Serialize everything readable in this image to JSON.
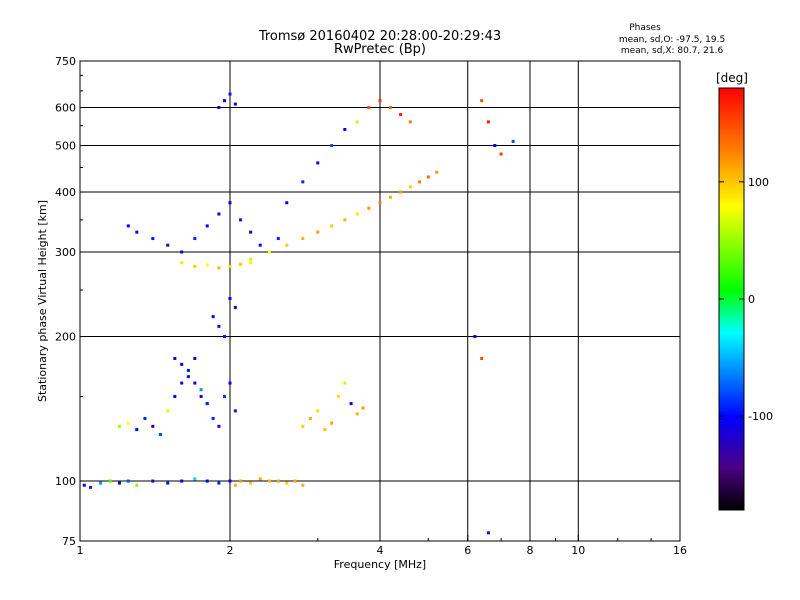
{
  "header": {
    "title_line1": "Tromsø 20160402 20:28:00-20:29:43",
    "title_line2": "RwPretec (Bp)",
    "phase_heading": "Phases",
    "phase_o": "mean, sd,O: -97.5, 19.5",
    "phase_x": "mean, sd,X:  80.7, 21.6"
  },
  "chart_data": {
    "type": "scatter",
    "title": "Tromsø 20160402 20:28:00-20:29:43",
    "subtitle": "RwPretec (Bp)",
    "xlabel": "Frequency [MHz]",
    "ylabel": "Stationary phase Virtual Height [km]",
    "x_scale": "log",
    "y_scale": "log",
    "xlim": [
      1,
      16
    ],
    "ylim": [
      75,
      750
    ],
    "x_ticks": [
      1,
      2,
      4,
      6,
      8,
      10,
      16
    ],
    "y_ticks": [
      75,
      100,
      200,
      300,
      400,
      500,
      600,
      750
    ],
    "grid_x": [
      2,
      4,
      6,
      8,
      10
    ],
    "grid_y": [
      100,
      200,
      300,
      400,
      500,
      600
    ],
    "grid": true,
    "colorbar": {
      "label": "[deg]",
      "range": [
        -180,
        180
      ],
      "ticks": [
        100,
        0,
        -100
      ],
      "colors": [
        "#000000",
        "#4b0082",
        "#0000ff",
        "#00ffff",
        "#00ff00",
        "#ffff00",
        "#ff8000",
        "#ff0000"
      ]
    },
    "series": [
      {
        "x": [
          1.02,
          1.05,
          1.1,
          1.15,
          1.2,
          1.25,
          1.3,
          1.4,
          1.5,
          1.6,
          1.7,
          1.8,
          1.9,
          2.0
        ],
        "y": [
          98,
          97,
          99,
          100,
          99,
          100,
          98,
          100,
          99,
          100,
          101,
          100,
          99,
          100
        ],
        "phase": [
          -100,
          -90,
          -60,
          20,
          -110,
          -80,
          40,
          -120,
          -95,
          -105,
          -40,
          -100,
          -90,
          -110
        ]
      },
      {
        "x": [
          1.2,
          1.25,
          1.3,
          1.35,
          1.4,
          1.45,
          1.5,
          1.55,
          1.6,
          1.65,
          1.7,
          1.75,
          1.8,
          1.85,
          1.9,
          1.95,
          2.0,
          2.05
        ],
        "y": [
          130,
          132,
          128,
          135,
          130,
          125,
          140,
          150,
          160,
          170,
          180,
          155,
          145,
          135,
          130,
          150,
          160,
          140
        ],
        "phase": [
          50,
          80,
          -100,
          -90,
          -120,
          -80,
          70,
          -100,
          -110,
          -95,
          -120,
          -60,
          -100,
          -90,
          -110,
          -85,
          -100,
          -95
        ]
      },
      {
        "x": [
          1.55,
          1.6,
          1.65,
          1.7,
          1.75,
          1.8,
          1.85,
          1.9,
          1.95,
          2.0,
          2.05
        ],
        "y": [
          180,
          175,
          165,
          160,
          150,
          145,
          220,
          210,
          200,
          240,
          230
        ],
        "phase": [
          -110,
          -100,
          -95,
          -105,
          -115,
          -90,
          -100,
          -110,
          -95,
          -100,
          -120
        ]
      },
      {
        "x": [
          2.05,
          2.1,
          2.2,
          2.3,
          2.4,
          2.5,
          2.6,
          2.7,
          2.8
        ],
        "y": [
          98,
          100,
          99,
          101,
          100,
          100,
          99,
          100,
          98
        ],
        "phase": [
          110,
          120,
          105,
          115,
          110,
          120,
          100,
          115,
          110
        ]
      },
      {
        "x": [
          2.8,
          2.9,
          3.0,
          3.1,
          3.2,
          3.3,
          3.4,
          3.5,
          3.6,
          3.7
        ],
        "y": [
          130,
          135,
          140,
          128,
          132,
          150,
          160,
          145,
          138,
          142
        ],
        "phase": [
          100,
          110,
          95,
          105,
          115,
          90,
          60,
          -100,
          110,
          120
        ]
      },
      {
        "x": [
          1.25,
          1.3,
          1.4,
          1.5,
          1.6,
          1.7,
          1.8,
          1.9,
          2.0,
          2.1,
          2.2,
          2.3,
          2.4,
          2.5
        ],
        "y": [
          340,
          330,
          320,
          310,
          300,
          320,
          340,
          360,
          380,
          350,
          330,
          310,
          300,
          320
        ],
        "phase": [
          -100,
          -110,
          -95,
          -120,
          -100,
          -90,
          -105,
          -110,
          -100,
          -95,
          -115,
          -100,
          -110,
          -90
        ]
      },
      {
        "x": [
          1.6,
          1.7,
          1.8,
          1.9,
          2.0,
          2.1,
          2.2
        ],
        "y": [
          285,
          280,
          282,
          278,
          280,
          283,
          285
        ],
        "phase": [
          90,
          100,
          80,
          110,
          95,
          105,
          85
        ]
      },
      {
        "x": [
          2.2,
          2.4,
          2.6,
          2.8,
          3.0,
          3.2,
          3.4,
          3.6,
          3.8,
          4.0,
          4.2,
          4.4,
          4.6,
          4.8,
          5.0,
          5.2
        ],
        "y": [
          290,
          300,
          310,
          320,
          330,
          340,
          350,
          360,
          370,
          380,
          390,
          400,
          410,
          420,
          430,
          440
        ],
        "phase": [
          60,
          80,
          100,
          110,
          120,
          100,
          110,
          90,
          120,
          130,
          110,
          120,
          100,
          130,
          140,
          120
        ]
      },
      {
        "x": [
          2.6,
          2.8,
          3.0,
          3.2,
          3.4,
          3.6,
          3.8,
          4.0,
          4.2,
          4.4,
          4.6
        ],
        "y": [
          380,
          420,
          460,
          500,
          540,
          560,
          600,
          620,
          600,
          580,
          560
        ],
        "phase": [
          -100,
          -90,
          -110,
          -80,
          -100,
          60,
          150,
          160,
          140,
          170,
          130
        ]
      },
      {
        "x": [
          1.9,
          1.95,
          2.0,
          2.05
        ],
        "y": [
          600,
          620,
          640,
          610
        ],
        "phase": [
          -100,
          -110,
          -95,
          -105
        ]
      },
      {
        "x": [
          6.4,
          6.6,
          6.8,
          7.0,
          7.4
        ],
        "y": [
          620,
          560,
          500,
          480,
          510
        ],
        "phase": [
          150,
          170,
          -100,
          160,
          -80
        ]
      },
      {
        "x": [
          6.2,
          6.4,
          6.6
        ],
        "y": [
          200,
          180,
          78
        ],
        "phase": [
          -100,
          150,
          -110
        ]
      }
    ]
  }
}
